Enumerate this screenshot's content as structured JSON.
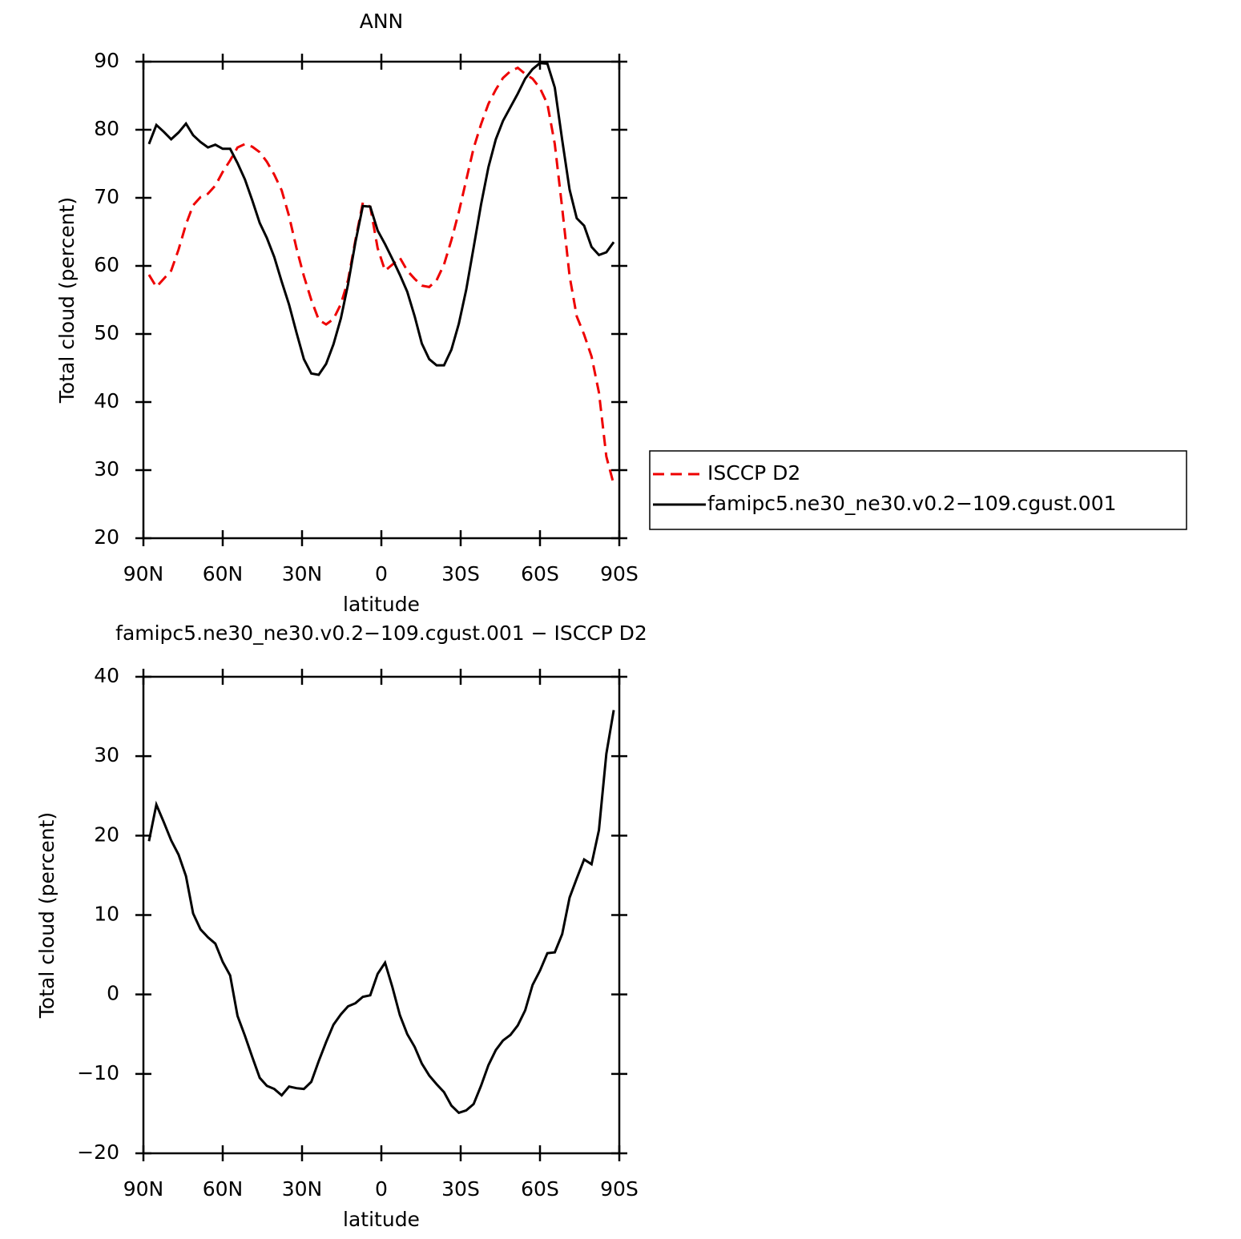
{
  "chart_data": [
    {
      "type": "line",
      "title": "ANN",
      "xlabel": "latitude",
      "ylabel": "Total cloud (percent)",
      "xlim": [
        90,
        -90
      ],
      "xticks": [
        {
          "value": 90,
          "label": "90N"
        },
        {
          "value": 60,
          "label": "60N"
        },
        {
          "value": 30,
          "label": "30N"
        },
        0,
        {
          "value": -30,
          "label": "30S"
        },
        {
          "value": -60,
          "label": "60S"
        },
        {
          "value": -90,
          "label": "90S"
        }
      ],
      "ylim": [
        20,
        90
      ],
      "yticks": [
        20,
        30,
        40,
        50,
        60,
        70,
        80,
        90
      ],
      "legend": "right",
      "x": [
        87.9,
        85.1,
        82.3,
        79.5,
        76.7,
        73.9,
        71.2,
        68.4,
        65.6,
        62.8,
        60.0,
        57.2,
        54.4,
        51.6,
        48.8,
        46.0,
        43.3,
        40.5,
        37.7,
        34.9,
        32.1,
        29.3,
        26.5,
        23.7,
        20.9,
        18.1,
        15.3,
        12.6,
        9.8,
        7.0,
        4.2,
        1.4,
        -1.4,
        -4.2,
        -7.0,
        -9.8,
        -12.6,
        -15.3,
        -18.1,
        -20.9,
        -23.7,
        -26.5,
        -29.3,
        -32.1,
        -34.9,
        -37.7,
        -40.5,
        -43.3,
        -46.0,
        -48.8,
        -51.6,
        -54.4,
        -57.2,
        -60.0,
        -62.8,
        -65.6,
        -68.4,
        -71.2,
        -73.9,
        -76.7,
        -79.5,
        -82.3,
        -85.1,
        -87.9
      ],
      "series": [
        {
          "name": "ISCCP D2",
          "color": "#ee0000",
          "dash": true,
          "values": [
            58.7,
            56.9,
            58.1,
            59.3,
            62.4,
            66.1,
            68.9,
            70.1,
            70.6,
            71.8,
            73.8,
            75.5,
            77.4,
            77.9,
            77.5,
            76.7,
            75.3,
            73.4,
            71.1,
            67.3,
            62.6,
            58.5,
            55.0,
            52.1,
            51.4,
            52.2,
            54.4,
            57.9,
            63.8,
            69.3,
            68.7,
            62.6,
            59.3,
            60.2,
            61.2,
            59.3,
            58.1,
            57.1,
            56.9,
            57.9,
            60.2,
            63.8,
            67.9,
            72.6,
            77.3,
            80.8,
            83.8,
            85.9,
            87.6,
            88.6,
            89.1,
            88.2,
            87.5,
            86.1,
            83.8,
            77.9,
            68.5,
            58.5,
            52.6,
            49.9,
            46.7,
            41.4,
            32.0,
            27.9
          ]
        },
        {
          "name": "famipc5.ne30_ne30.v0.2−109.cgust.001",
          "color": "#000000",
          "dash": false,
          "values": [
            77.9,
            80.7,
            79.7,
            78.6,
            79.6,
            80.9,
            79.2,
            78.2,
            77.4,
            77.8,
            77.2,
            77.2,
            75.1,
            72.7,
            69.6,
            66.3,
            64.1,
            61.3,
            57.7,
            54.3,
            50.2,
            46.3,
            44.2,
            44.0,
            45.6,
            48.5,
            52.3,
            57.3,
            63.5,
            68.8,
            68.7,
            65.2,
            63.2,
            61.0,
            58.7,
            56.2,
            52.6,
            48.6,
            46.3,
            45.4,
            45.4,
            47.7,
            51.5,
            56.5,
            62.7,
            69.0,
            74.5,
            78.6,
            81.3,
            83.3,
            85.3,
            87.5,
            88.9,
            89.8,
            89.7,
            86.2,
            78.5,
            71.2,
            67.0,
            65.9,
            62.8,
            61.6,
            62.0,
            63.5
          ]
        }
      ]
    },
    {
      "type": "line",
      "title": "famipc5.ne30_ne30.v0.2−109.cgust.001 − ISCCP D2",
      "xlabel": "latitude",
      "ylabel": "Total cloud (percent)",
      "xlim": [
        90,
        -90
      ],
      "xticks": [
        {
          "value": 90,
          "label": "90N"
        },
        {
          "value": 60,
          "label": "60N"
        },
        {
          "value": 30,
          "label": "30N"
        },
        0,
        {
          "value": -30,
          "label": "30S"
        },
        {
          "value": -60,
          "label": "60S"
        },
        {
          "value": -90,
          "label": "90S"
        }
      ],
      "ylim": [
        -20,
        40
      ],
      "yticks": [
        {
          "value": -20,
          "label": "−20"
        },
        {
          "value": -10,
          "label": "−10"
        },
        0,
        10,
        20,
        30,
        40
      ],
      "x": [
        87.9,
        85.1,
        82.3,
        79.5,
        76.7,
        73.9,
        71.2,
        68.4,
        65.6,
        62.8,
        60.0,
        57.2,
        54.4,
        51.6,
        48.8,
        46.0,
        43.3,
        40.5,
        37.7,
        34.9,
        32.1,
        29.3,
        26.5,
        23.7,
        20.9,
        18.1,
        15.3,
        12.6,
        9.8,
        7.0,
        4.2,
        1.4,
        -1.4,
        -4.2,
        -7.0,
        -9.8,
        -12.6,
        -15.3,
        -18.1,
        -20.9,
        -23.7,
        -26.5,
        -29.3,
        -32.1,
        -34.9,
        -37.7,
        -40.5,
        -43.3,
        -46.0,
        -48.8,
        -51.6,
        -54.4,
        -57.2,
        -60.0,
        -62.8,
        -65.6,
        -68.4,
        -71.2,
        -73.9,
        -76.7,
        -79.5,
        -82.3,
        -85.1,
        -87.9
      ],
      "series": [
        {
          "color": "#000000",
          "dash": false,
          "values": [
            19.3,
            23.9,
            21.7,
            19.4,
            17.6,
            14.9,
            10.2,
            8.2,
            7.2,
            6.4,
            4.1,
            2.4,
            -2.7,
            -5.2,
            -7.9,
            -10.5,
            -11.5,
            -11.9,
            -12.7,
            -11.6,
            -11.8,
            -11.9,
            -11.0,
            -8.4,
            -6.0,
            -3.8,
            -2.5,
            -1.5,
            -1.1,
            -0.3,
            -0.1,
            2.6,
            4.0,
            0.9,
            -2.6,
            -5.0,
            -6.6,
            -8.7,
            -10.2,
            -11.3,
            -12.3,
            -14.0,
            -14.9,
            -14.6,
            -13.8,
            -11.5,
            -8.9,
            -7.0,
            -5.8,
            -5.1,
            -3.9,
            -2.0,
            1.2,
            3.0,
            5.2,
            5.3,
            7.6,
            12.2,
            14.6,
            17.0,
            16.4,
            20.7,
            30.3,
            35.8
          ]
        }
      ]
    }
  ]
}
